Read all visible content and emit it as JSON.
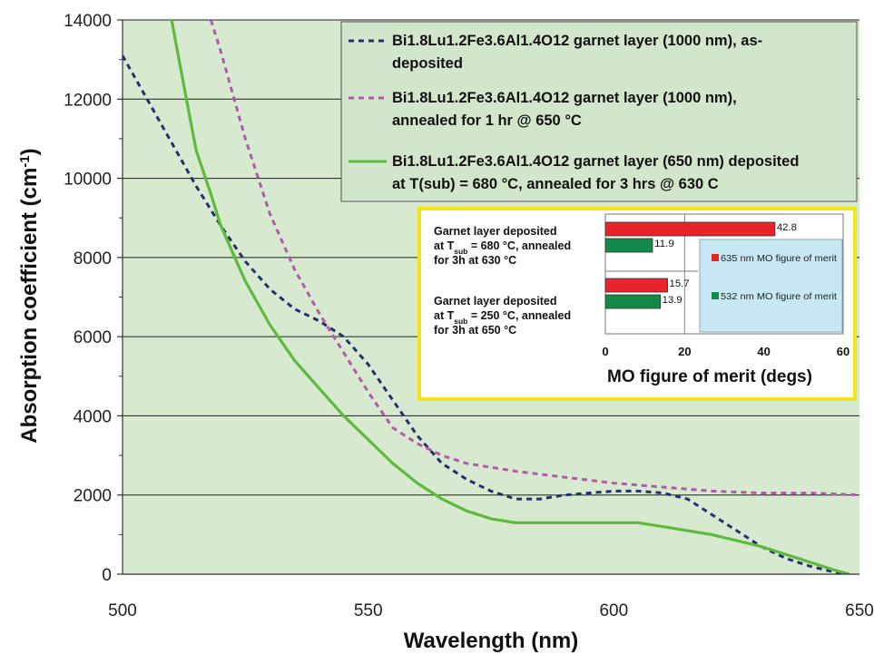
{
  "chart_data": [
    {
      "type": "line",
      "title": "",
      "xlabel": "Wavelength (nm)",
      "ylabel_main": "Absorption coefficient (cm",
      "ylabel_sup": "-1",
      "ylabel_close": ")",
      "xlim": [
        500,
        650
      ],
      "ylim": [
        0,
        14000
      ],
      "xticks": [
        500,
        550,
        600,
        650
      ],
      "yticks": [
        0,
        2000,
        4000,
        6000,
        8000,
        10000,
        12000,
        14000
      ],
      "grid": "horizontal",
      "legend_position": "top-right",
      "plot_background": "#d7ead0",
      "series": [
        {
          "name_lines": [
            "Bi1.8Lu1.2Fe3.6Al1.4O12 garnet layer (1000 nm),  as-",
            "deposited"
          ],
          "color": "#24306e",
          "style": "dashed",
          "x": [
            500,
            505,
            510,
            515,
            520,
            525,
            530,
            535,
            540,
            545,
            550,
            555,
            560,
            565,
            570,
            575,
            580,
            585,
            590,
            595,
            600,
            605,
            610,
            615,
            620,
            625,
            630,
            635,
            640,
            645,
            647
          ],
          "y": [
            13100,
            12000,
            10900,
            9800,
            8800,
            7900,
            7200,
            6700,
            6400,
            6000,
            5300,
            4400,
            3500,
            2800,
            2400,
            2100,
            1900,
            1900,
            2000,
            2050,
            2100,
            2100,
            2050,
            1900,
            1500,
            1100,
            700,
            400,
            200,
            50,
            0
          ]
        },
        {
          "name_lines": [
            "Bi1.8Lu1.2Fe3.6Al1.4O12 garnet layer (1000 nm),",
            "annealed for 1 hr @ 650 °C"
          ],
          "color": "#b15aa8",
          "style": "dashed",
          "x": [
            518,
            520,
            525,
            530,
            535,
            540,
            545,
            550,
            555,
            560,
            565,
            570,
            580,
            590,
            600,
            610,
            620,
            630,
            640,
            650
          ],
          "y": [
            14000,
            13200,
            11000,
            9100,
            7700,
            6600,
            5600,
            4600,
            3700,
            3300,
            3000,
            2800,
            2600,
            2450,
            2300,
            2200,
            2100,
            2050,
            2050,
            2000
          ]
        },
        {
          "name_lines": [
            "Bi1.8Lu1.2Fe3.6Al1.4O12 garnet layer (650 nm) deposited",
            "at T(sub) = 680 °C, annealed for 3  hrs @ 630 C"
          ],
          "color": "#5dba3a",
          "style": "solid",
          "x": [
            510,
            513,
            515,
            518,
            520,
            525,
            530,
            535,
            540,
            545,
            550,
            555,
            560,
            565,
            570,
            575,
            580,
            590,
            600,
            605,
            610,
            620,
            630,
            640,
            645,
            648
          ],
          "y": [
            14000,
            12000,
            10700,
            9600,
            8800,
            7400,
            6300,
            5400,
            4700,
            4000,
            3400,
            2800,
            2300,
            1900,
            1600,
            1400,
            1300,
            1300,
            1300,
            1300,
            1200,
            1000,
            700,
            300,
            100,
            0
          ]
        }
      ]
    },
    {
      "type": "bar",
      "orientation": "horizontal",
      "xlabel": "MO figure of merit (degs)",
      "xlim": [
        0,
        60
      ],
      "xticks": [
        "0",
        "20",
        "40",
        "60"
      ],
      "categories": [
        {
          "lines": [
            {
              "pre": "Garnet layer deposited",
              "sub": "",
              "post": ""
            },
            {
              "pre": "at T",
              "sub": "sub",
              "post": " = 680 °C, annealed"
            },
            {
              "pre": "for 3h at 630 °C",
              "sub": "",
              "post": ""
            }
          ]
        },
        {
          "lines": [
            {
              "pre": "Garnet layer deposited",
              "sub": "",
              "post": ""
            },
            {
              "pre": "at T",
              "sub": "sub",
              "post": " = 250 °C, annealed"
            },
            {
              "pre": "for 3h at 650 °C",
              "sub": "",
              "post": ""
            }
          ]
        }
      ],
      "series": [
        {
          "name": "635 nm MO figure of merit",
          "color": "#e8232b",
          "values": [
            42.8,
            15.7
          ],
          "labels": [
            "42.8",
            "15.7"
          ]
        },
        {
          "name": "532 nm MO figure of merit",
          "color": "#138a4a",
          "values": [
            11.9,
            13.9
          ],
          "labels": [
            "11.9",
            "13.9"
          ]
        }
      ]
    }
  ],
  "colors": {
    "plot_background": "#d7ead0",
    "legend_background": "#d2e6cb",
    "inset_border": "#f2e41d",
    "inset_legend_background": "#c7e8f3"
  }
}
